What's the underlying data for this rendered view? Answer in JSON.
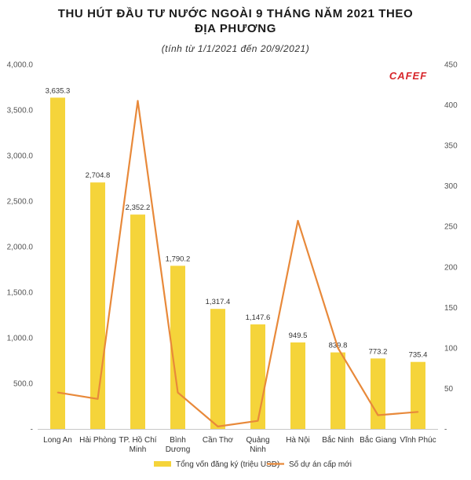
{
  "chart_data": {
    "type": "bar",
    "title_lines": [
      "THU HÚT ĐẦU TƯ NƯỚC NGOÀI 9 THÁNG NĂM 2021 THEO",
      "ĐỊA PHƯƠNG"
    ],
    "subtitle": "(tính từ 1/1/2021 đến 20/9/2021)",
    "brand": "CAFEF",
    "categories": [
      [
        "Long An"
      ],
      [
        "Hải Phòng"
      ],
      [
        "TP. Hồ Chí",
        "Minh"
      ],
      [
        "Bình",
        "Dương"
      ],
      [
        "Cần Thơ"
      ],
      [
        "Quảng",
        "Ninh"
      ],
      [
        "Hà Nội"
      ],
      [
        "Bắc Ninh"
      ],
      [
        "Bắc Giang"
      ],
      [
        "Vĩnh Phúc"
      ]
    ],
    "series": [
      {
        "name": "Tổng vốn đăng ký (triệu USD)",
        "kind": "bar",
        "axis": "left",
        "color": "#f5d43a",
        "values": [
          3635.3,
          2704.8,
          2352.2,
          1790.2,
          1317.4,
          1147.6,
          949.5,
          839.8,
          773.2,
          735.4
        ],
        "labels": [
          "3,635.3",
          "2,704.8",
          "2,352.2",
          "1,790.2",
          "1,317.4",
          "1,147.6",
          "949.5",
          "839.8",
          "773.2",
          "735.4"
        ]
      },
      {
        "name": "Số dự án cấp mới",
        "kind": "line",
        "axis": "right",
        "color": "#e8893a",
        "values": [
          45,
          37,
          405,
          45,
          3,
          10,
          257,
          100,
          17,
          21
        ]
      }
    ],
    "y_left": {
      "min": 0,
      "max": 4000,
      "ticks": [
        0,
        500,
        1000,
        1500,
        2000,
        2500,
        3000,
        3500,
        4000
      ],
      "tick_labels": [
        "-",
        "500.0",
        "1,000.0",
        "1,500.0",
        "2,000.0",
        "2,500.0",
        "3,000.0",
        "3,500.0",
        "4,000.0"
      ]
    },
    "y_right": {
      "min": 0,
      "max": 450,
      "ticks": [
        0,
        50,
        100,
        150,
        200,
        250,
        300,
        350,
        400,
        450
      ],
      "tick_labels": [
        "-",
        "50",
        "100",
        "150",
        "200",
        "250",
        "300",
        "350",
        "400",
        "450"
      ]
    },
    "grid": false,
    "legend_position": "bottom"
  }
}
